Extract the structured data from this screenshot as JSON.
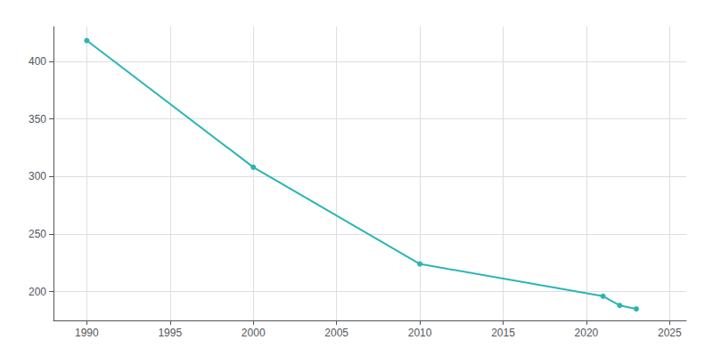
{
  "chart_data": {
    "type": "line",
    "x": [
      1990,
      2000,
      2010,
      2021,
      2022,
      2023
    ],
    "values": [
      418,
      308,
      224,
      196,
      188,
      185
    ],
    "color": "#2ab5b5",
    "marker": "circle",
    "xlim": [
      1988,
      2026
    ],
    "xticks": [
      1990,
      1995,
      2000,
      2005,
      2010,
      2015,
      2020,
      2025
    ],
    "ylim": [
      175,
      430
    ],
    "yticks": [
      200,
      250,
      300,
      350,
      400
    ],
    "grid": true
  }
}
